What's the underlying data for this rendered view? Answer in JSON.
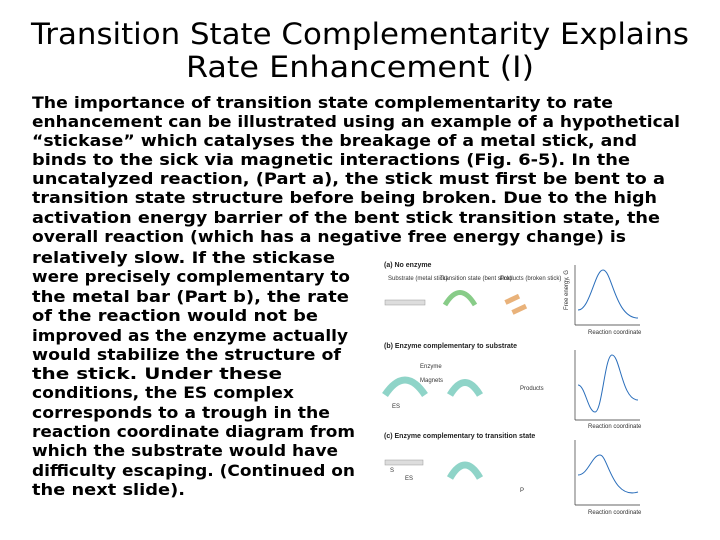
{
  "title": [
    "Transition State Complementarity Explains",
    "Rate Enhancement (I)"
  ],
  "body": [
    "The importance of transition state complementarity to rate",
    "enhancement can be illustrated using an example of a hypothetical",
    "“stickase” which catalyses the breakage of a metal stick, and",
    "binds to the sick via magnetic interactions (Fig. 6-5). In the",
    "uncatalyzed reaction, (Part a), the stick must first be bent to a",
    "transition state structure before being broken. Due to the high",
    "activation energy barrier of the bent stick transition state, the",
    "overall reaction (which has a negative free energy change) is",
    "relatively slow. If the stickase",
    "were precisely complementary to",
    "the metal bar (Part b), the rate",
    "of the reaction would not be",
    "improved as the enzyme actually",
    "would stabilize the structure of",
    "the stick. Under these",
    "conditions, the ES complex",
    "corresponds to a trough in the",
    "reaction coordinate diagram from",
    "which the substrate would have",
    "difficulty escaping. (Continued on",
    "the next slide)."
  ],
  "figure": {
    "panel_a": {
      "heading": "(a) No enzyme",
      "substrate": "Substrate (metal stick)",
      "transition": "Transition state (bent stick)",
      "products": "Products (broken stick)"
    },
    "panel_b": {
      "heading": "(b) Enzyme complementary to substrate",
      "enzyme": "Enzyme",
      "magnets": "Magnets",
      "products": "Products",
      "es": "ES"
    },
    "panel_c": {
      "heading": "(c) Enzyme complementary to transition state",
      "es": "ES"
    },
    "y_axis": "Free energy, G",
    "x_axis": "Reaction coordinate",
    "s": "S",
    "p": "P"
  }
}
